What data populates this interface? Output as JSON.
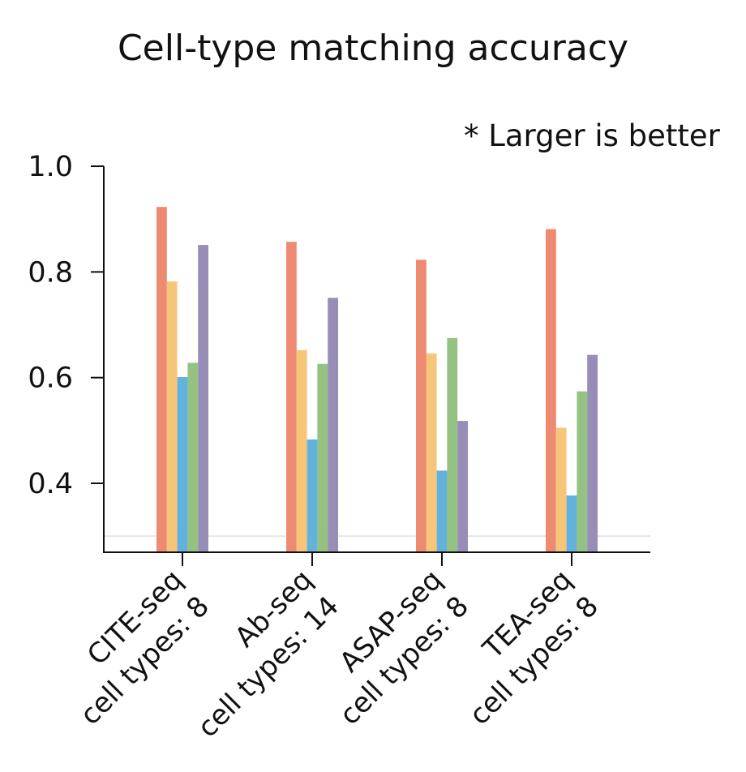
{
  "chart_data": {
    "type": "bar",
    "title": "Cell-type matching accuracy",
    "annotation": "* Larger is better",
    "xlabel": "",
    "ylabel": "",
    "ylim": [
      0.27,
      1.0
    ],
    "yticks": [
      "1.0",
      "0.8",
      "0.6",
      "0.4"
    ],
    "ytick_values": [
      1.0,
      0.8,
      0.6,
      0.4
    ],
    "reference_line": 0.3,
    "grid": false,
    "legend": "none",
    "categories": [
      [
        "CITE-seq",
        "cell types: 8"
      ],
      [
        "Ab-seq",
        "cell types: 14"
      ],
      [
        "ASAP-seq",
        "cell types: 8"
      ],
      [
        "TEA-seq",
        "cell types: 8"
      ]
    ],
    "series": [
      {
        "color": "#ee8a72",
        "values": [
          0.923,
          0.857,
          0.823,
          0.881
        ]
      },
      {
        "color": "#f7c57a",
        "values": [
          0.782,
          0.652,
          0.646,
          0.505
        ]
      },
      {
        "color": "#63b1dd",
        "values": [
          0.601,
          0.483,
          0.424,
          0.377
        ]
      },
      {
        "color": "#94c283",
        "values": [
          0.628,
          0.626,
          0.675,
          0.574
        ]
      },
      {
        "color": "#978db6",
        "values": [
          0.851,
          0.751,
          0.518,
          0.643
        ]
      }
    ]
  }
}
